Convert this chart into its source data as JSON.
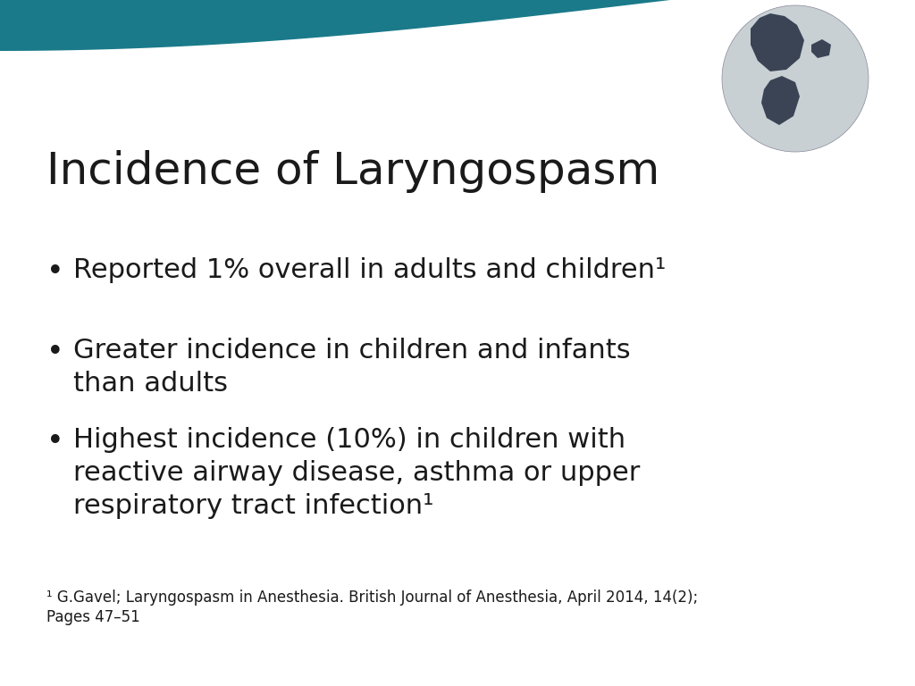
{
  "title": "Incidence of Laryngospasm",
  "title_fontsize": 36,
  "title_color": "#1a1a1a",
  "background_color": "#ffffff",
  "header_color": "#1a7a8a",
  "bullet_points": [
    "Reported 1% overall in adults and children¹",
    "Greater incidence in children and infants\nthan adults",
    "Highest incidence (10%) in children with\nreactive airway disease, asthma or upper\nrespiratory tract infection¹"
  ],
  "bullet_color": "#2a2a2a",
  "text_color": "#1a1a1a",
  "bullet_fontsize": 22,
  "footnote_line1": "¹ G.Gavel; Laryngospasm in Anesthesia. British Journal of Anesthesia, April 2014, 14(2);",
  "footnote_line2": "Pages 47–51",
  "footnote_fontsize": 12,
  "footnote_color": "#1a1a1a",
  "teal_color": "#1a7a8a"
}
